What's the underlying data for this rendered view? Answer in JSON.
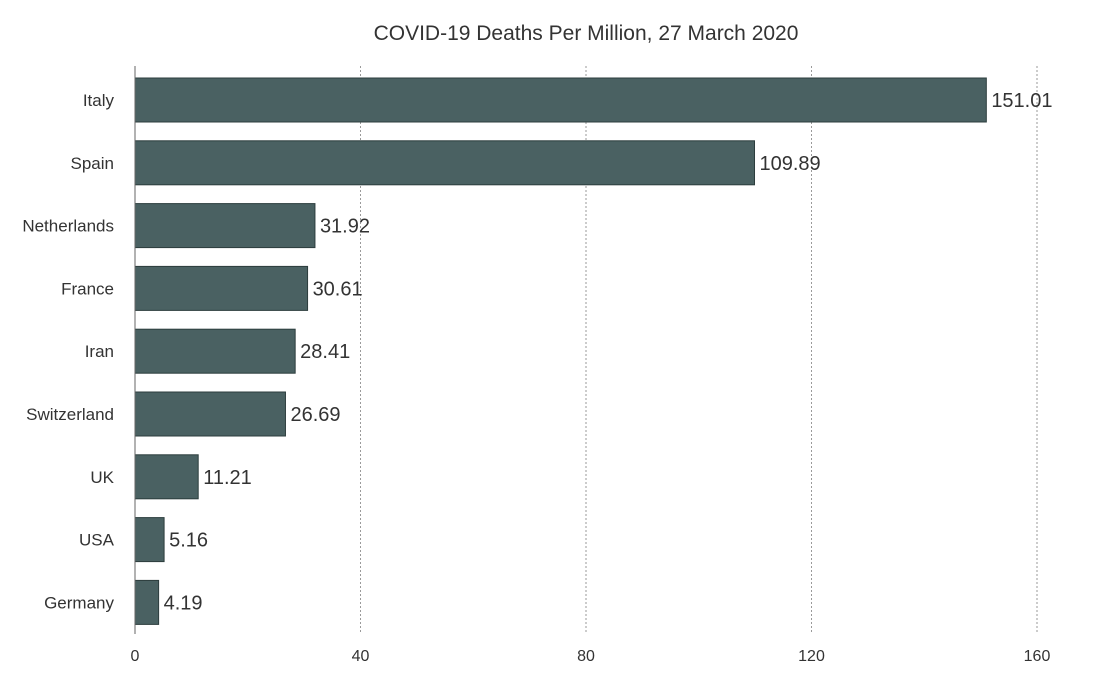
{
  "chart_data": {
    "type": "bar",
    "orientation": "horizontal",
    "title": "COVID-19 Deaths Per Million, 27 March 2020",
    "xlabel": "",
    "ylabel": "",
    "categories": [
      "Italy",
      "Spain",
      "Netherlands",
      "France",
      "Iran",
      "Switzerland",
      "UK",
      "USA",
      "Germany"
    ],
    "values": [
      151.01,
      109.89,
      31.92,
      30.61,
      28.41,
      26.69,
      11.21,
      5.16,
      4.19
    ],
    "value_labels": [
      "151.01",
      "109.89",
      "31.92",
      "30.61",
      "28.41",
      "26.69",
      "11.21",
      "5.16",
      "4.19"
    ],
    "xlim": [
      0,
      160
    ],
    "xticks": [
      0,
      40,
      80,
      120,
      160
    ],
    "grid": true,
    "legend": "none",
    "bar_color": "#4a6162"
  }
}
